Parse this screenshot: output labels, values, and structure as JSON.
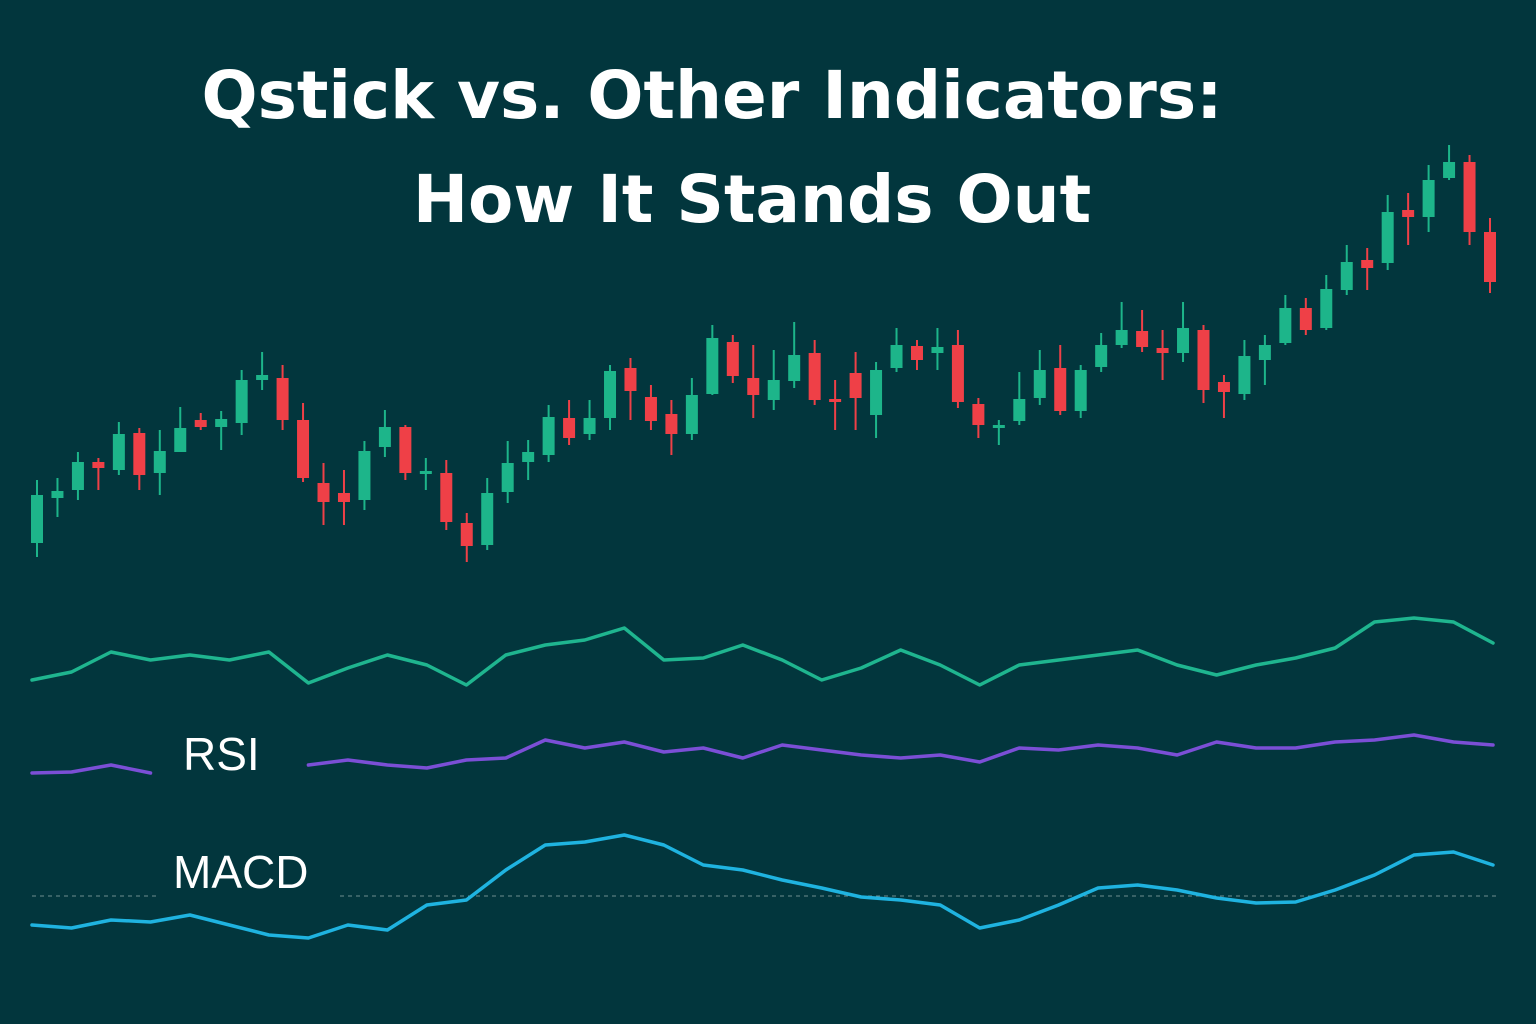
{
  "chart_data": [
    {
      "type": "candlestick",
      "title": [
        "Qstick vs. Other Indicators:",
        "How It Stands Out"
      ],
      "up_color": "#1db58a",
      "down_color": "#ef4047",
      "ylim": [
        0,
        480
      ],
      "open": [
        57,
        102,
        110,
        138,
        130,
        167,
        127,
        148,
        180,
        173,
        177,
        220,
        222,
        180,
        117,
        107,
        100,
        153,
        173,
        126,
        127,
        77,
        55,
        108,
        138,
        145,
        182,
        166,
        182,
        232,
        203,
        186,
        166,
        206,
        258,
        222,
        200,
        219,
        247,
        201,
        227,
        185,
        232,
        254,
        247,
        255,
        196,
        172,
        179,
        202,
        232,
        189,
        233,
        255,
        269,
        252,
        247,
        270,
        218,
        206,
        240,
        257,
        292,
        272,
        310,
        340,
        337,
        390,
        383,
        422,
        438,
        368
      ],
      "high": [
        120,
        122,
        148,
        142,
        178,
        172,
        170,
        193,
        187,
        189,
        230,
        248,
        235,
        197,
        137,
        130,
        159,
        190,
        175,
        142,
        140,
        87,
        122,
        159,
        160,
        195,
        200,
        200,
        235,
        242,
        215,
        200,
        222,
        275,
        265,
        255,
        250,
        278,
        260,
        220,
        248,
        238,
        272,
        260,
        272,
        270,
        202,
        180,
        228,
        250,
        255,
        235,
        267,
        298,
        290,
        270,
        298,
        275,
        225,
        260,
        265,
        305,
        302,
        325,
        355,
        352,
        405,
        407,
        435,
        455,
        445,
        382
      ],
      "low": [
        43,
        83,
        100,
        110,
        125,
        110,
        105,
        148,
        170,
        150,
        165,
        210,
        170,
        118,
        75,
        75,
        90,
        143,
        120,
        110,
        70,
        38,
        50,
        97,
        120,
        138,
        155,
        160,
        170,
        180,
        170,
        145,
        160,
        205,
        217,
        182,
        190,
        212,
        195,
        170,
        170,
        162,
        228,
        230,
        230,
        192,
        162,
        155,
        175,
        195,
        185,
        182,
        228,
        252,
        248,
        220,
        238,
        197,
        182,
        200,
        215,
        255,
        265,
        270,
        305,
        310,
        330,
        355,
        368,
        420,
        355,
        307
      ],
      "close": [
        105,
        109,
        138,
        132,
        166,
        125,
        149,
        172,
        173,
        181,
        220,
        225,
        180,
        122,
        98,
        98,
        149,
        173,
        127,
        129,
        78,
        54,
        107,
        137,
        148,
        183,
        162,
        182,
        229,
        209,
        179,
        166,
        205,
        262,
        224,
        205,
        220,
        245,
        200,
        198,
        202,
        230,
        255,
        240,
        253,
        198,
        175,
        175,
        201,
        230,
        189,
        230,
        255,
        270,
        253,
        247,
        272,
        210,
        208,
        244,
        255,
        292,
        270,
        311,
        338,
        332,
        388,
        383,
        420,
        438,
        368,
        318
      ]
    },
    {
      "type": "line",
      "color": "#1fb58f",
      "ylim": [
        -40,
        60
      ],
      "values": [
        -20,
        -12,
        8,
        0,
        5,
        0,
        8,
        -23,
        -8,
        5,
        -5,
        -25,
        5,
        15,
        20,
        32,
        0,
        2,
        15,
        0,
        -20,
        -8,
        10,
        -5,
        -25,
        -5,
        0,
        5,
        10,
        -5,
        -15,
        -5,
        2,
        12,
        38,
        42,
        38,
        17
      ]
    },
    {
      "type": "line",
      "label": "RSI",
      "color": "#7b4fd6",
      "ylim": [
        -25,
        35
      ],
      "values": [
        -13,
        -12,
        -5,
        -13,
        null,
        null,
        null,
        -5,
        0,
        -5,
        -8,
        0,
        2,
        20,
        12,
        18,
        8,
        12,
        2,
        15,
        10,
        5,
        2,
        5,
        -2,
        12,
        10,
        15,
        12,
        5,
        18,
        12,
        12,
        18,
        20,
        25,
        18,
        15
      ]
    },
    {
      "type": "line",
      "label": "MACD",
      "color": "#1fb3e0",
      "ylim": [
        -50,
        70
      ],
      "values": [
        -29,
        -32,
        -24,
        -26,
        -19,
        -29,
        -39,
        -42,
        -29,
        -34,
        -9,
        -4,
        26,
        51,
        54,
        61,
        51,
        31,
        26,
        16,
        8,
        -1,
        -4,
        -9,
        -32,
        -24,
        -9,
        8,
        11,
        6,
        -2,
        -7,
        -6,
        6,
        21,
        41,
        44,
        31
      ]
    }
  ]
}
